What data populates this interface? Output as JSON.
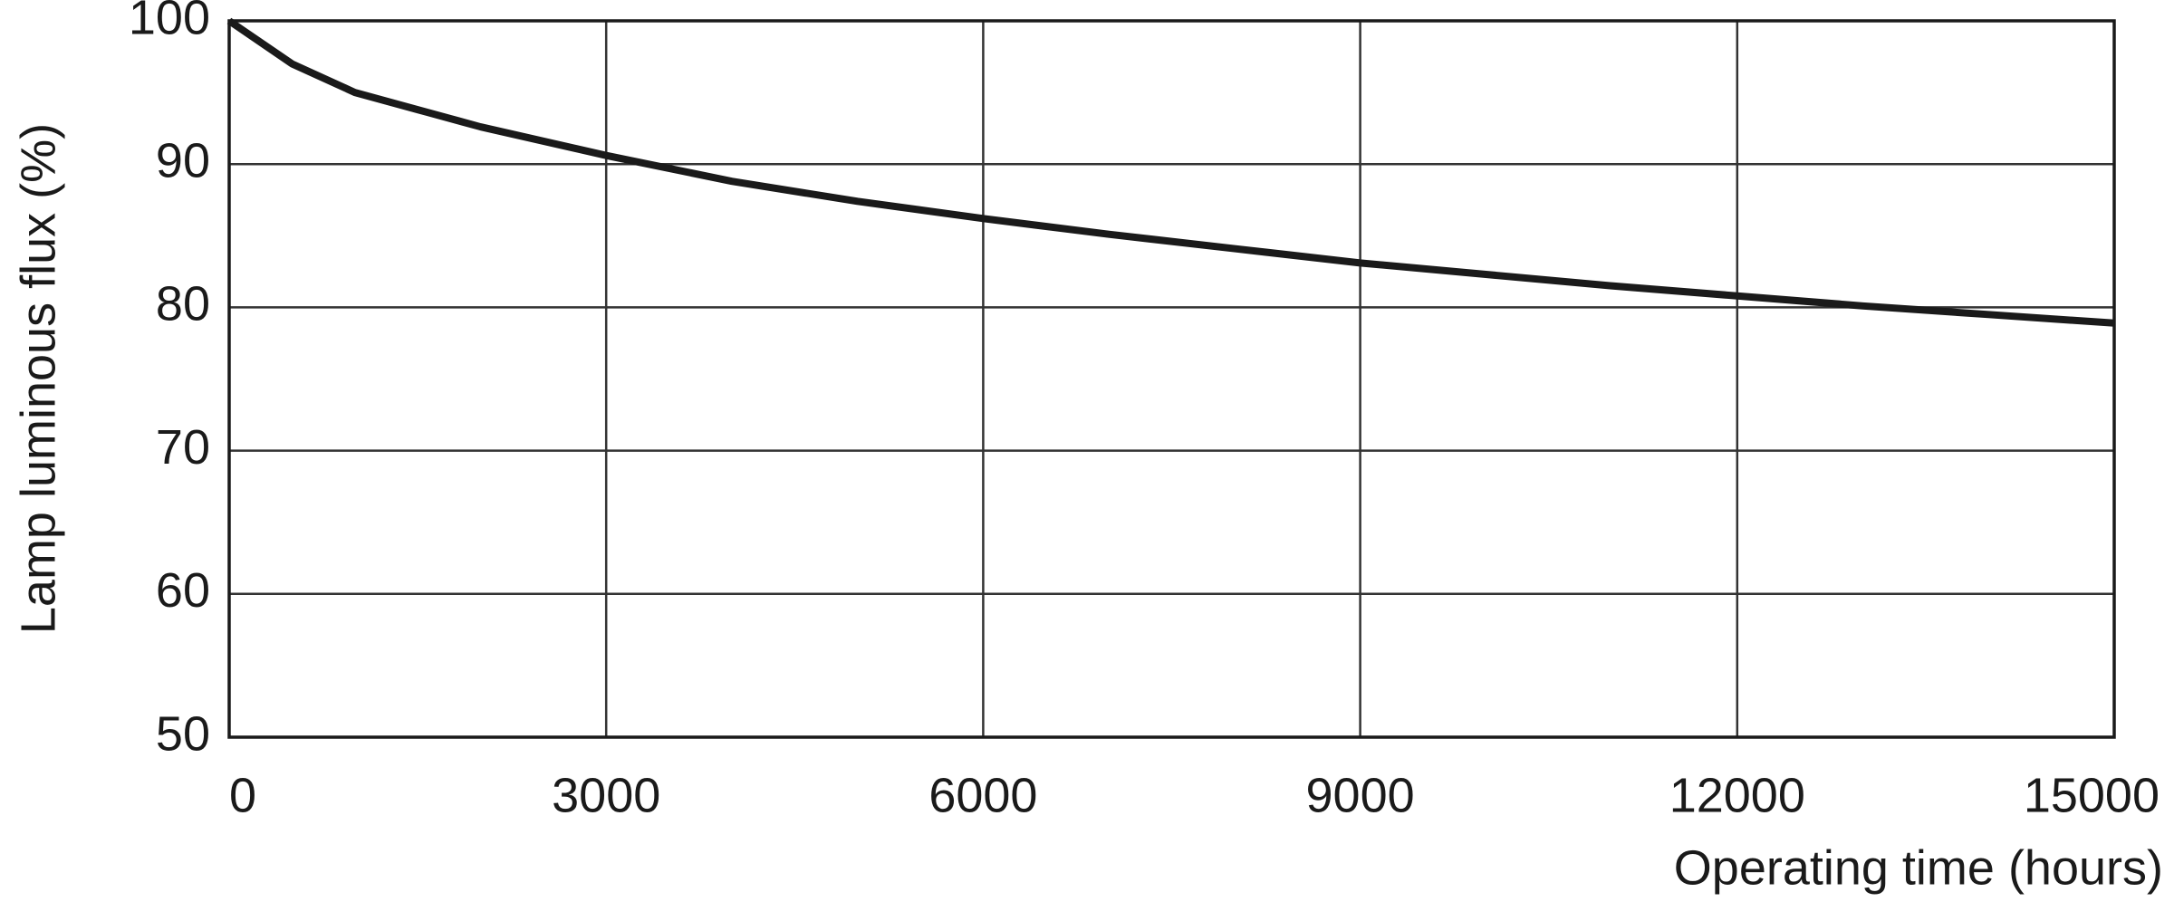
{
  "chart_data": {
    "type": "line",
    "y_label": "Lamp luminous flux (%)",
    "x_label": "Operating time (hours)",
    "x": [
      0,
      500,
      1000,
      1500,
      2000,
      3000,
      4000,
      5000,
      6000,
      7000,
      8000,
      9000,
      10000,
      11000,
      12000,
      13000,
      14000,
      15000
    ],
    "values": [
      100,
      97,
      95,
      93.8,
      92.6,
      90.6,
      88.8,
      87.4,
      86.2,
      85.1,
      84.1,
      83.1,
      82.3,
      81.5,
      80.8,
      80.1,
      79.5,
      78.9
    ],
    "color": "#1a1a1a",
    "xlim": [
      0,
      15000
    ],
    "ylim": [
      50,
      100
    ],
    "xticks": [
      0,
      3000,
      6000,
      9000,
      12000,
      15000
    ],
    "yticks": [
      50,
      60,
      70,
      80,
      90,
      100
    ],
    "grid": true
  }
}
